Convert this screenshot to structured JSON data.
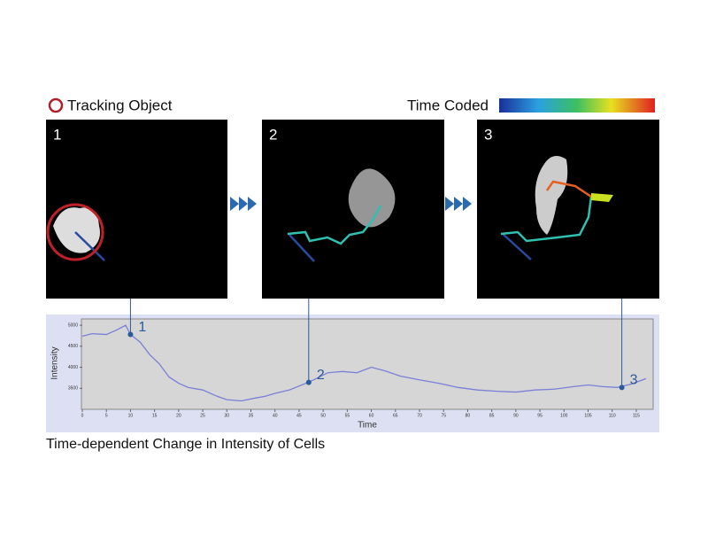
{
  "legend": {
    "tracking": "Tracking Object",
    "time_coded": "Time Coded"
  },
  "panels": [
    "1",
    "2",
    "3"
  ],
  "caption": "Time-dependent Change in Intensity of Cells",
  "chart_data": {
    "type": "line",
    "y_label": "Intensity",
    "x_label": "Time",
    "xlim": [
      0,
      118.5
    ],
    "ylim": [
      3000,
      5150
    ],
    "xticks": [
      0,
      5,
      10,
      15,
      20,
      25,
      30,
      35,
      40,
      45,
      50,
      55,
      60,
      65,
      70,
      75,
      80,
      85,
      90,
      95,
      100,
      105,
      110,
      115
    ],
    "yticks": [
      3500,
      4000,
      4500,
      5000
    ],
    "grid": false,
    "series": [
      {
        "name": "Intensity",
        "color": "#7b7fd6",
        "x": [
          0,
          2,
          5,
          7,
          9,
          10,
          12,
          14,
          16,
          18,
          20,
          22,
          25,
          28,
          30,
          33,
          36,
          38,
          40,
          43,
          46,
          48,
          51,
          54,
          57,
          60,
          63,
          66,
          70,
          74,
          78,
          82,
          86,
          90,
          94,
          98,
          102,
          105,
          108,
          111,
          114,
          117
        ],
        "values": [
          4740,
          4800,
          4780,
          4880,
          5000,
          4780,
          4600,
          4300,
          4080,
          3770,
          3620,
          3520,
          3460,
          3310,
          3230,
          3200,
          3270,
          3310,
          3380,
          3460,
          3600,
          3700,
          3870,
          3900,
          3870,
          4000,
          3910,
          3790,
          3700,
          3620,
          3520,
          3460,
          3430,
          3410,
          3460,
          3480,
          3540,
          3580,
          3540,
          3520,
          3600,
          3730
        ]
      }
    ],
    "markers": [
      {
        "x": 10,
        "y": 4780,
        "label": "1"
      },
      {
        "x": 47,
        "y": 3640,
        "label": "2"
      },
      {
        "x": 112,
        "y": 3520,
        "label": "3"
      }
    ]
  }
}
